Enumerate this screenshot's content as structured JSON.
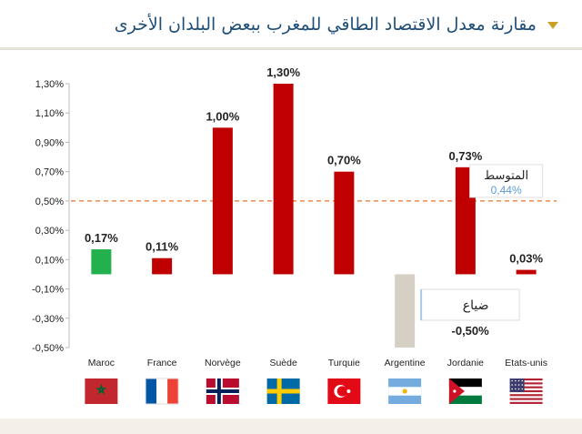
{
  "header": {
    "title": "مقارنة معدل الاقتصاد الطاقي للمغرب ببعض البلدان الأخرى",
    "marker_icon": "triangle-down-icon",
    "accent_color": "#c9a227",
    "title_color": "#1f4e79"
  },
  "chart_data": {
    "type": "bar",
    "title": "مقارنة معدل الاقتصاد الطاقي للمغرب ببعض البلدان الأخرى",
    "xlabel": "",
    "ylabel": "",
    "categories": [
      "Maroc",
      "France",
      "Norvège",
      "Suède",
      "Turquie",
      "Argentine",
      "Jordanie",
      "Etats-unis"
    ],
    "values": [
      0.17,
      0.11,
      1.0,
      1.3,
      0.7,
      -0.5,
      0.73,
      0.03
    ],
    "value_labels": [
      "0,17%",
      "0,11%",
      "1,00%",
      "1,30%",
      "0,70%",
      "",
      "0,73%",
      "0,03%"
    ],
    "bar_colors": [
      "#22b14c",
      "#c00000",
      "#c00000",
      "#c00000",
      "#c00000",
      "#d6d0c4",
      "#c00000",
      "#c00000"
    ],
    "ylim": [
      -0.5,
      1.3
    ],
    "yticks": [
      1.3,
      1.1,
      0.9,
      0.7,
      0.5,
      0.3,
      0.1,
      -0.1,
      -0.3,
      -0.5
    ],
    "ytick_labels": [
      "1,30%",
      "1,10%",
      "0,90%",
      "0,70%",
      "0,50%",
      "0,30%",
      "0,10%",
      "-0,10%",
      "-0,30%",
      "-0,50%"
    ],
    "grid": false,
    "reference_line": {
      "y": 0.5,
      "color": "#e8702a"
    },
    "average": {
      "label": "المتوسط",
      "value_label": "0,44%",
      "value_color": "#5b9bd5"
    },
    "loss": {
      "label": "ضياع",
      "value_label": "-0,50%"
    },
    "flag_icons": [
      "flag-morocco-icon",
      "flag-france-icon",
      "flag-norway-icon",
      "flag-sweden-icon",
      "flag-turkey-icon",
      "flag-argentina-icon",
      "flag-jordan-icon",
      "flag-usa-icon"
    ]
  }
}
